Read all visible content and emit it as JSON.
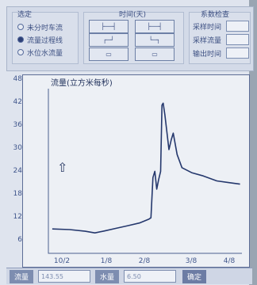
{
  "top_panel": {
    "mode_group_label": "选定",
    "modes": [
      {
        "label": "未分时车流",
        "selected": false
      },
      {
        "label": "流量过程线",
        "selected": true
      },
      {
        "label": "水位水流量",
        "selected": false
      }
    ],
    "time_group_label": "时间(天)",
    "param_group_label": "系数检查",
    "params": [
      {
        "label": "采样时间"
      },
      {
        "label": "采样流量"
      },
      {
        "label": "输出时间"
      }
    ]
  },
  "chart": {
    "title": "流量(立方米每秒)",
    "up_arrow": "⇧"
  },
  "chart_data": {
    "type": "line",
    "title": "流量(立方米每秒)",
    "xlabel": "",
    "ylabel": "",
    "y_ticks": [
      "48",
      "42",
      "36",
      "30",
      "24",
      "18",
      "12",
      "6"
    ],
    "x_ticks": [
      "10/2",
      "1/8",
      "2/8",
      "3/8",
      "4/8"
    ],
    "ylim": [
      0,
      50
    ],
    "xlim": [
      0,
      100
    ],
    "series": [
      {
        "points": [
          [
            2,
            7.4
          ],
          [
            11,
            7.2
          ],
          [
            19,
            6.7
          ],
          [
            24,
            6.2
          ],
          [
            29,
            6.8
          ],
          [
            35,
            7.6
          ],
          [
            41,
            8.4
          ],
          [
            47,
            9.2
          ],
          [
            52,
            10.4
          ],
          [
            53,
            10.8
          ],
          [
            54,
            23.0
          ],
          [
            55,
            24.9
          ],
          [
            56,
            19.5
          ],
          [
            57,
            22.5
          ],
          [
            58,
            24.9
          ],
          [
            58.7,
            45.0
          ],
          [
            59.3,
            45.6
          ],
          [
            60.2,
            42.0
          ],
          [
            61.4,
            36.0
          ],
          [
            62.3,
            31.5
          ],
          [
            63.5,
            34.5
          ],
          [
            64.5,
            36.5
          ],
          [
            66.5,
            30.0
          ],
          [
            69,
            26.0
          ],
          [
            74,
            24.5
          ],
          [
            80,
            23.5
          ],
          [
            87,
            22.0
          ],
          [
            93,
            21.5
          ],
          [
            99,
            21.0
          ]
        ]
      }
    ],
    "grid": false
  },
  "bottom_bar": {
    "flow_label": "流量",
    "flow_value": "143.55",
    "level_label": "水量",
    "level_value": "6.50",
    "action_label": "确定"
  },
  "colors": {
    "line": "#25386d",
    "panel": "#d3dae8",
    "chart_bg": "#edf0f5"
  }
}
